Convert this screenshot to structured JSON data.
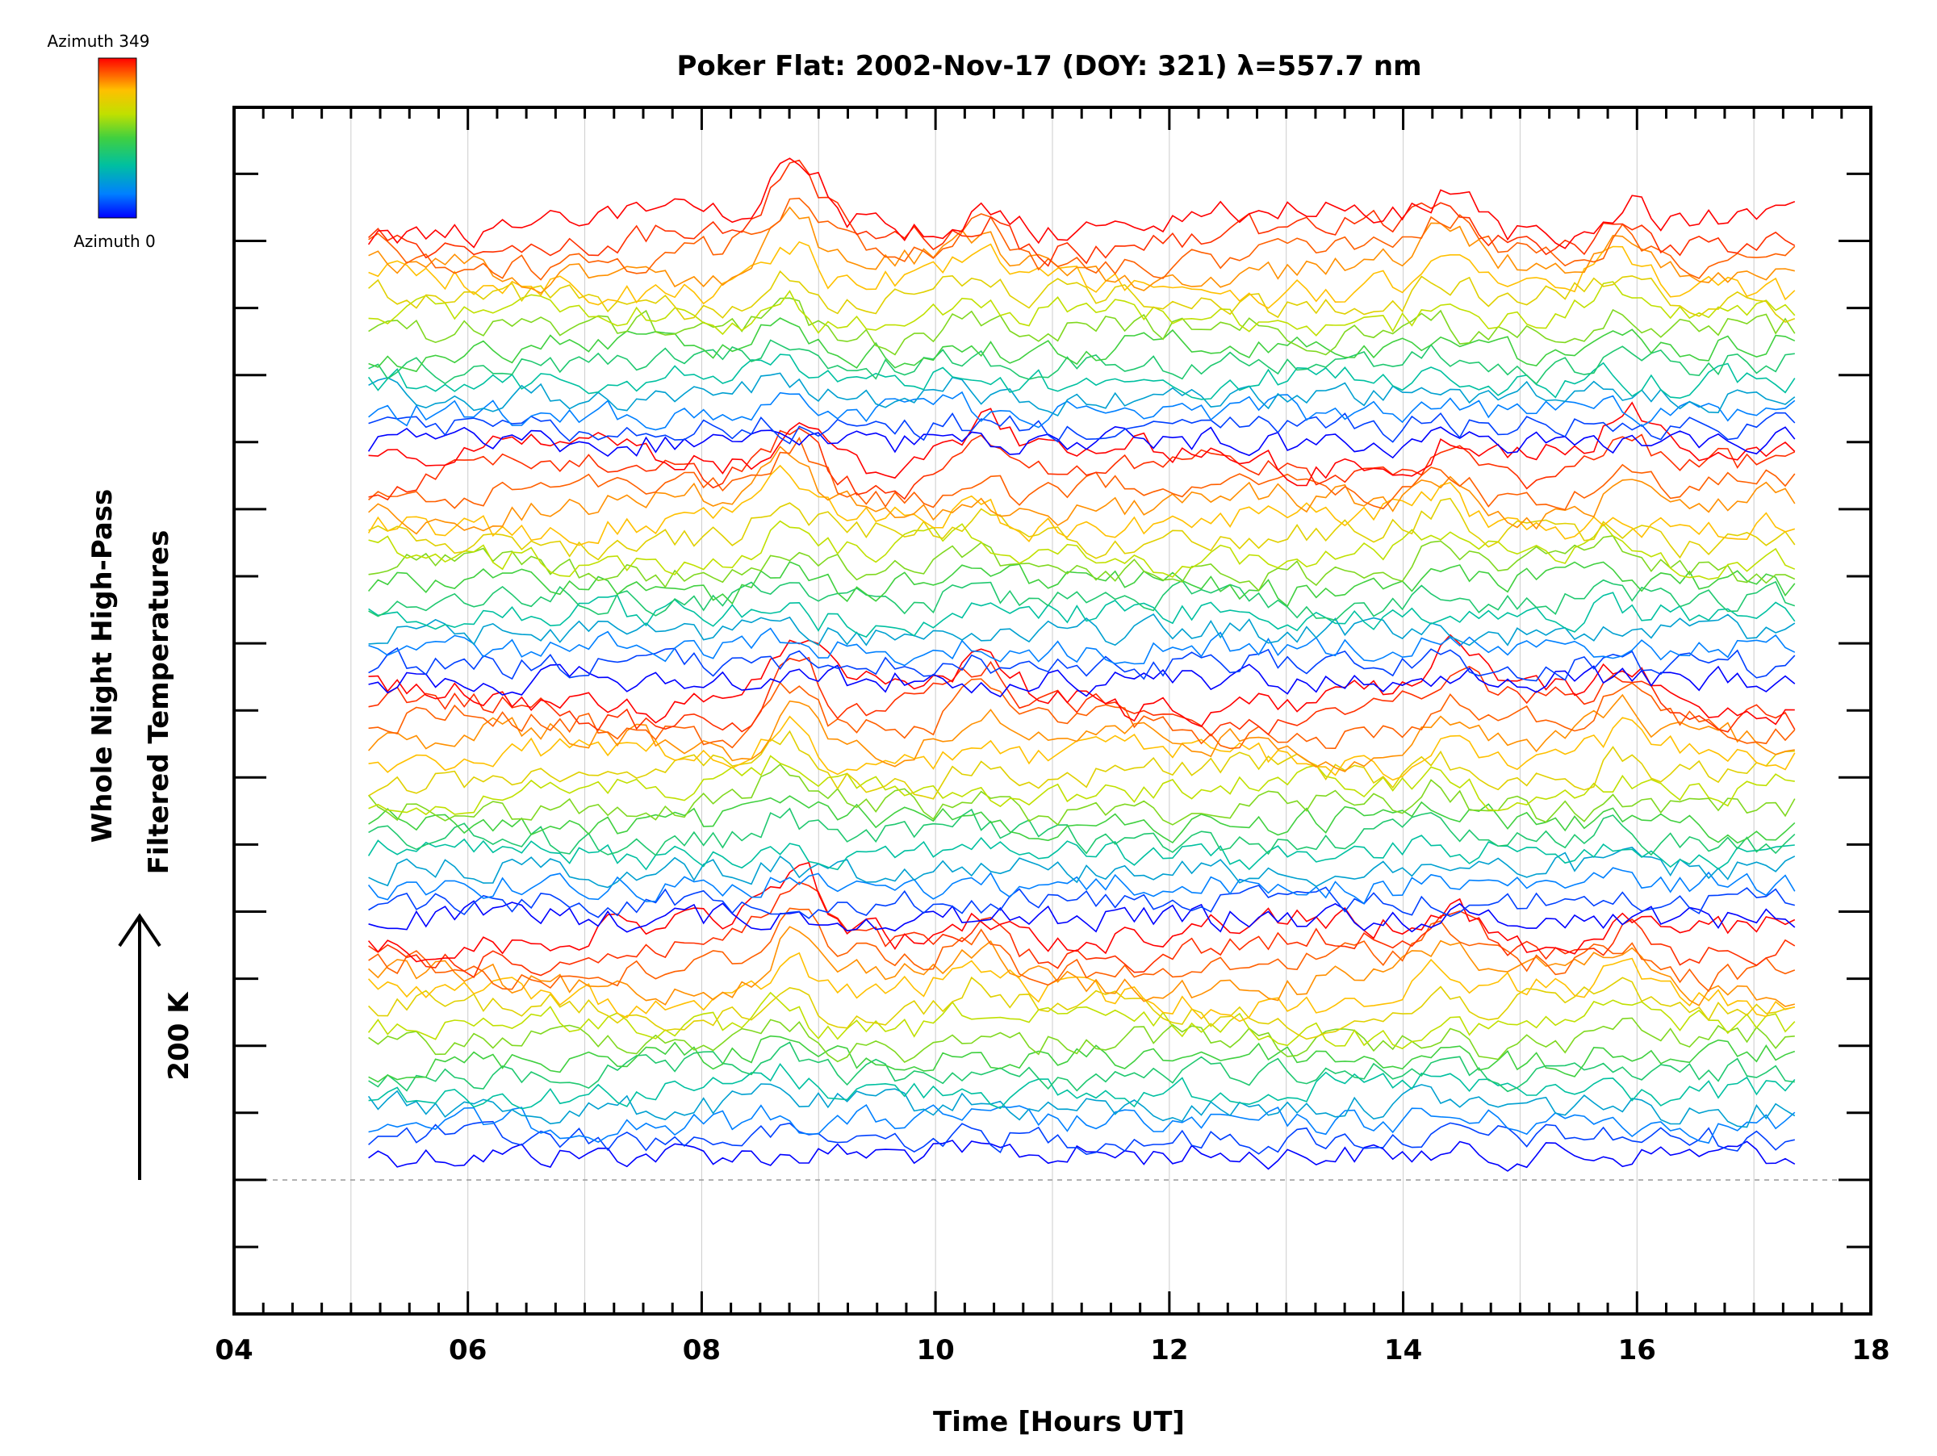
{
  "chart_data": {
    "type": "line",
    "title": "Poker Flat: 2002-Nov-17 (DOY: 321) λ=557.7 nm",
    "xlabel": "Time [Hours UT]",
    "ylabel_lines": [
      "Whole Night High-Pass",
      "Filtered Temperatures"
    ],
    "scale_label": "200 K",
    "xlim": [
      4,
      18
    ],
    "xticks": [
      "04",
      "06",
      "08",
      "10",
      "12",
      "14",
      "16",
      "18"
    ],
    "x_grid": [
      5,
      6,
      7,
      8,
      9,
      10,
      11,
      12,
      13,
      14,
      15,
      16,
      17
    ],
    "data_x_range": [
      5.15,
      17.35
    ],
    "colorbar": {
      "top_label": "Azimuth 349",
      "bottom_label": "Azimuth 0",
      "colormap": [
        "#0000ff",
        "#0080ff",
        "#00c0a0",
        "#40d040",
        "#c0e000",
        "#ffc000",
        "#ff6000",
        "#ff0000"
      ]
    },
    "series_count": 60,
    "azimuth_range": [
      0,
      349
    ],
    "events": [
      {
        "time": 8.7,
        "amplitude": 1.0
      },
      {
        "time": 10.3,
        "amplitude": 0.55
      },
      {
        "time": 14.3,
        "amplitude": 0.6
      },
      {
        "time": 15.8,
        "amplitude": 0.55
      }
    ],
    "grid": "vertical",
    "baseline": "dashed"
  }
}
